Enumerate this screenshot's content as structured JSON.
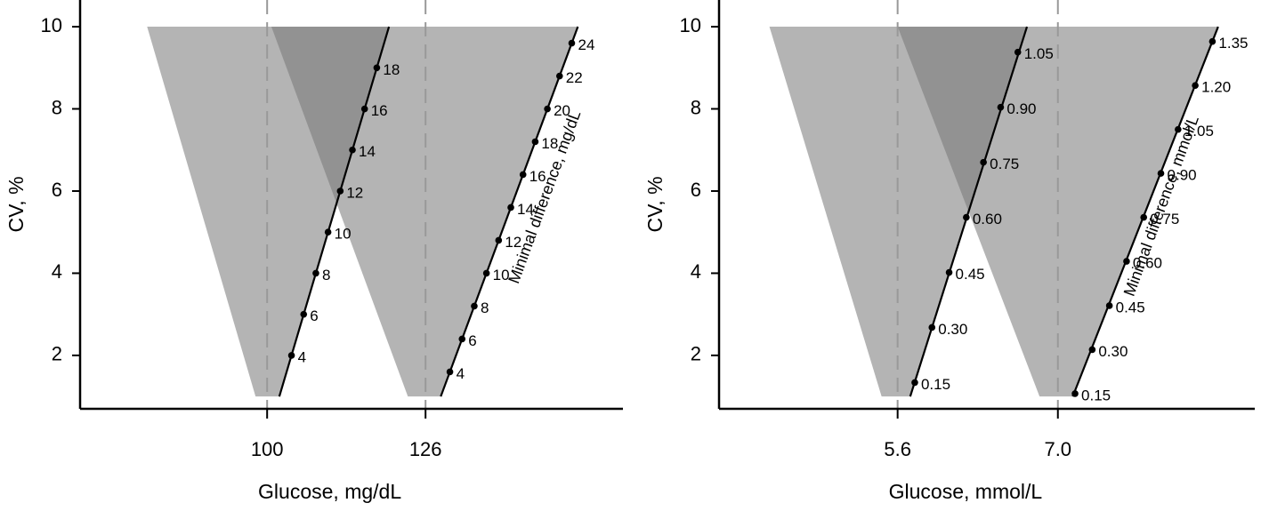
{
  "chart_data": [
    {
      "type": "line",
      "xlabel": "Glucose, mg/dL",
      "ylabel": "CV, %",
      "annotation": "Minimal difference, mg/dL",
      "xlim": [
        69.3,
        158.4
      ],
      "ylim": [
        0.7,
        10.65
      ],
      "xticks": [
        100,
        126
      ],
      "yticks": [
        2,
        4,
        6,
        8,
        10
      ],
      "grid": "dashed",
      "regions": [
        {
          "color": "#777777",
          "opacity": 0.55,
          "x": [
            80.3,
            120,
            102,
            98.1
          ],
          "y": [
            10,
            10,
            1,
            1
          ]
        },
        {
          "color": "#777777",
          "opacity": 0.55,
          "x": [
            100.7,
            151,
            128.5,
            123.1
          ],
          "y": [
            10,
            10,
            1,
            1
          ]
        }
      ],
      "series": [
        {
          "color": "#000000",
          "line_x": [
            102,
            120
          ],
          "line_y": [
            1,
            10
          ],
          "x": [
            104,
            106,
            108,
            110,
            112,
            114,
            116,
            118
          ],
          "values": [
            2,
            3,
            4,
            5,
            6,
            7,
            8,
            9
          ],
          "point_labels": [
            4,
            6,
            8,
            10,
            12,
            14,
            16,
            18
          ]
        },
        {
          "color": "#000000",
          "line_x": [
            128.5,
            151
          ],
          "line_y": [
            1,
            10
          ],
          "x": [
            130,
            132,
            134,
            136,
            138,
            140,
            142,
            144,
            146,
            148,
            150
          ],
          "values": [
            1.6,
            2.4,
            3.2,
            4,
            4.8,
            5.6,
            6.4,
            7.2,
            8,
            8.8,
            9.6
          ],
          "point_labels": [
            4,
            6,
            8,
            10,
            12,
            14,
            16,
            18,
            20,
            22,
            24
          ]
        }
      ]
    },
    {
      "type": "line",
      "xlabel": "Glucose, mmol/L",
      "ylabel": "CV, %",
      "annotation": "Minimal difference, mmol/L",
      "xlim": [
        4.04,
        8.72
      ],
      "ylim": [
        0.7,
        10.65
      ],
      "xticks": [
        5.6,
        {
          "value": 7,
          "label": "7.0"
        }
      ],
      "yticks": [
        2,
        4,
        6,
        8,
        10
      ],
      "grid": "dashed",
      "regions": [
        {
          "color": "#777777",
          "opacity": 0.55,
          "x": [
            4.48,
            6.73,
            5.71,
            5.46
          ],
          "y": [
            10,
            10,
            1,
            1
          ]
        },
        {
          "color": "#777777",
          "opacity": 0.55,
          "x": [
            5.6,
            8.4,
            7.13,
            6.84
          ],
          "y": [
            10,
            10,
            1,
            1
          ]
        }
      ],
      "series": [
        {
          "color": "#000000",
          "line_x": [
            5.71,
            6.73
          ],
          "line_y": [
            1,
            10
          ],
          "x": [
            5.75,
            5.9,
            6.05,
            6.2,
            6.35,
            6.5,
            6.65
          ],
          "values": [
            1.34,
            2.68,
            4.02,
            5.36,
            6.7,
            8.04,
            9.38
          ],
          "point_labels": [
            "0.15",
            "0.30",
            "0.45",
            "0.60",
            "0.75",
            "0.90",
            "1.05"
          ]
        },
        {
          "color": "#000000",
          "line_x": [
            7.13,
            8.4
          ],
          "line_y": [
            1,
            10
          ],
          "x": [
            7.15,
            7.3,
            7.45,
            7.6,
            7.75,
            7.9,
            8.05,
            8.2,
            8.35
          ],
          "values": [
            1.07,
            2.14,
            3.21,
            4.29,
            5.36,
            6.43,
            7.5,
            8.57,
            9.64
          ],
          "point_labels": [
            "0.15",
            "0.30",
            "0.45",
            "0.60",
            "0.75",
            "0.90",
            "1.05",
            "1.20",
            "1.35"
          ]
        }
      ]
    }
  ]
}
